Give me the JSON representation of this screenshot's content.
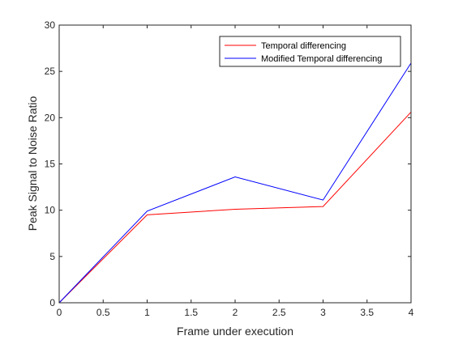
{
  "chart_data": {
    "type": "line",
    "xlabel": "Frame under execution",
    "ylabel": "Peak Signal to Noise Ratio",
    "xlim": [
      0,
      4
    ],
    "ylim": [
      0,
      30
    ],
    "xticks": [
      0,
      0.5,
      1,
      1.5,
      2,
      2.5,
      3,
      3.5,
      4
    ],
    "xtick_labels": [
      "0",
      "0.5",
      "1",
      "1.5",
      "2",
      "2.5",
      "3",
      "3.5",
      "4"
    ],
    "yticks": [
      0,
      5,
      10,
      15,
      20,
      25,
      30
    ],
    "ytick_labels": [
      "0",
      "5",
      "10",
      "15",
      "20",
      "25",
      "30"
    ],
    "grid": false,
    "legend_position": "top-right",
    "x": [
      0,
      1,
      2,
      3,
      4
    ],
    "series": [
      {
        "name": "Temporal differencing",
        "color": "#ff0000",
        "values": [
          0,
          9.5,
          10.1,
          10.4,
          20.6
        ]
      },
      {
        "name": "Modified Temporal differencing",
        "color": "#0000ff",
        "values": [
          0,
          9.9,
          13.6,
          11.1,
          25.9
        ]
      }
    ]
  }
}
